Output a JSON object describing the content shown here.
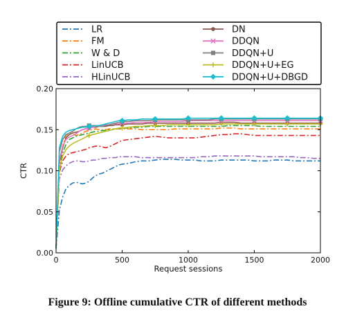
{
  "caption": "Figure 9: Offline cumulative CTR of different methods",
  "chart_data": {
    "type": "line",
    "title": "",
    "xlabel": "Request sessions",
    "ylabel": "CTR",
    "xlim": [
      0,
      2000
    ],
    "ylim": [
      0,
      0.2
    ],
    "xticks": [
      0,
      500,
      1000,
      1500,
      2000
    ],
    "xtick_labels": [
      "0",
      "500",
      "1000",
      "1500",
      "2000"
    ],
    "yticks": [
      0,
      0.05,
      0.1,
      0.15,
      0.2
    ],
    "ytick_labels": [
      "0.00",
      "0.05",
      "0.10",
      "0.15",
      "0.20"
    ],
    "grid": false,
    "legend_position": "top, two columns, above plot",
    "x": [
      0,
      25,
      50,
      75,
      100,
      125,
      150,
      175,
      200,
      225,
      250,
      275,
      300,
      325,
      350,
      375,
      400,
      425,
      450,
      475,
      500,
      550,
      600,
      650,
      700,
      750,
      800,
      850,
      900,
      950,
      1000,
      1050,
      1100,
      1150,
      1200,
      1250,
      1300,
      1350,
      1400,
      1450,
      1500,
      1550,
      1600,
      1650,
      1700,
      1750,
      1800,
      1850,
      1900,
      1950,
      2000
    ],
    "series": [
      {
        "name": "LR",
        "color": "#1f77b4",
        "dash": "8 3 2 3",
        "marker": "none",
        "values": [
          0.005,
          0.052,
          0.068,
          0.078,
          0.082,
          0.085,
          0.086,
          0.085,
          0.084,
          0.085,
          0.087,
          0.091,
          0.094,
          0.096,
          0.097,
          0.099,
          0.101,
          0.103,
          0.105,
          0.107,
          0.108,
          0.109,
          0.111,
          0.112,
          0.112,
          0.113,
          0.114,
          0.114,
          0.114,
          0.113,
          0.113,
          0.113,
          0.112,
          0.112,
          0.112,
          0.113,
          0.113,
          0.113,
          0.113,
          0.113,
          0.112,
          0.112,
          0.112,
          0.113,
          0.113,
          0.113,
          0.112,
          0.112,
          0.112,
          0.112,
          0.112
        ]
      },
      {
        "name": "FM",
        "color": "#ff7f0e",
        "dash": "8 3 2 3",
        "marker": "none",
        "values": [
          0.005,
          0.105,
          0.13,
          0.143,
          0.145,
          0.145,
          0.143,
          0.144,
          0.146,
          0.148,
          0.149,
          0.15,
          0.151,
          0.15,
          0.15,
          0.15,
          0.151,
          0.151,
          0.151,
          0.151,
          0.151,
          0.151,
          0.151,
          0.15,
          0.15,
          0.15,
          0.15,
          0.15,
          0.151,
          0.151,
          0.151,
          0.151,
          0.151,
          0.151,
          0.151,
          0.152,
          0.152,
          0.152,
          0.151,
          0.151,
          0.151,
          0.151,
          0.151,
          0.151,
          0.151,
          0.151,
          0.151,
          0.151,
          0.151,
          0.151,
          0.151
        ]
      },
      {
        "name": "W & D",
        "color": "#2ca02c",
        "dash": "8 3 2 3",
        "marker": "none",
        "values": [
          0.005,
          0.103,
          0.122,
          0.132,
          0.138,
          0.14,
          0.142,
          0.143,
          0.144,
          0.145,
          0.146,
          0.147,
          0.148,
          0.148,
          0.149,
          0.149,
          0.15,
          0.15,
          0.151,
          0.151,
          0.152,
          0.152,
          0.153,
          0.153,
          0.154,
          0.154,
          0.154,
          0.154,
          0.154,
          0.154,
          0.154,
          0.154,
          0.154,
          0.154,
          0.154,
          0.154,
          0.155,
          0.155,
          0.155,
          0.155,
          0.155,
          0.154,
          0.154,
          0.154,
          0.154,
          0.154,
          0.154,
          0.154,
          0.154,
          0.154,
          0.154
        ]
      },
      {
        "name": "LinUCB",
        "color": "#d62728",
        "dash": "8 3 2 3",
        "marker": "none",
        "values": [
          0.005,
          0.098,
          0.112,
          0.118,
          0.121,
          0.122,
          0.123,
          0.124,
          0.125,
          0.126,
          0.128,
          0.129,
          0.13,
          0.13,
          0.129,
          0.128,
          0.129,
          0.131,
          0.133,
          0.135,
          0.137,
          0.138,
          0.139,
          0.14,
          0.141,
          0.142,
          0.141,
          0.14,
          0.14,
          0.14,
          0.14,
          0.14,
          0.141,
          0.142,
          0.143,
          0.144,
          0.144,
          0.145,
          0.145,
          0.144,
          0.143,
          0.143,
          0.143,
          0.143,
          0.143,
          0.143,
          0.143,
          0.143,
          0.143,
          0.143,
          0.143
        ]
      },
      {
        "name": "HLinUCB",
        "color": "#9467bd",
        "dash": "8 3 2 3",
        "marker": "none",
        "values": [
          0.005,
          0.09,
          0.101,
          0.106,
          0.109,
          0.111,
          0.112,
          0.112,
          0.111,
          0.111,
          0.112,
          0.113,
          0.113,
          0.114,
          0.115,
          0.115,
          0.116,
          0.116,
          0.116,
          0.117,
          0.117,
          0.117,
          0.117,
          0.116,
          0.116,
          0.116,
          0.116,
          0.116,
          0.116,
          0.116,
          0.116,
          0.116,
          0.117,
          0.117,
          0.118,
          0.118,
          0.118,
          0.118,
          0.118,
          0.118,
          0.118,
          0.117,
          0.117,
          0.117,
          0.117,
          0.117,
          0.117,
          0.116,
          0.116,
          0.115,
          0.115
        ]
      },
      {
        "name": "DN",
        "color": "#8c564b",
        "dash": "",
        "marker": "circle",
        "values": [
          0.005,
          0.11,
          0.128,
          0.14,
          0.144,
          0.146,
          0.147,
          0.148,
          0.15,
          0.151,
          0.152,
          0.153,
          0.153,
          0.154,
          0.154,
          0.154,
          0.155,
          0.155,
          0.156,
          0.156,
          0.156,
          0.157,
          0.157,
          0.157,
          0.158,
          0.158,
          0.158,
          0.158,
          0.158,
          0.158,
          0.158,
          0.158,
          0.158,
          0.158,
          0.158,
          0.159,
          0.159,
          0.159,
          0.158,
          0.158,
          0.158,
          0.158,
          0.158,
          0.158,
          0.158,
          0.158,
          0.158,
          0.158,
          0.158,
          0.158,
          0.158
        ]
      },
      {
        "name": "DDQN",
        "color": "#e377c2",
        "dash": "",
        "marker": "x",
        "values": [
          0.005,
          0.112,
          0.13,
          0.138,
          0.141,
          0.143,
          0.145,
          0.148,
          0.15,
          0.151,
          0.152,
          0.153,
          0.154,
          0.155,
          0.155,
          0.156,
          0.156,
          0.157,
          0.157,
          0.157,
          0.158,
          0.158,
          0.159,
          0.159,
          0.159,
          0.16,
          0.16,
          0.16,
          0.16,
          0.16,
          0.161,
          0.161,
          0.161,
          0.161,
          0.161,
          0.161,
          0.161,
          0.161,
          0.161,
          0.161,
          0.161,
          0.161,
          0.161,
          0.161,
          0.161,
          0.161,
          0.161,
          0.161,
          0.161,
          0.161,
          0.161
        ]
      },
      {
        "name": "DDQN+U",
        "color": "#7f7f7f",
        "dash": "",
        "marker": "square",
        "values": [
          0.005,
          0.123,
          0.138,
          0.144,
          0.146,
          0.148,
          0.151,
          0.153,
          0.154,
          0.154,
          0.155,
          0.155,
          0.155,
          0.154,
          0.154,
          0.155,
          0.156,
          0.157,
          0.158,
          0.159,
          0.16,
          0.16,
          0.161,
          0.161,
          0.161,
          0.162,
          0.162,
          0.162,
          0.162,
          0.162,
          0.162,
          0.162,
          0.162,
          0.162,
          0.163,
          0.163,
          0.163,
          0.163,
          0.163,
          0.163,
          0.163,
          0.163,
          0.163,
          0.163,
          0.163,
          0.163,
          0.163,
          0.163,
          0.163,
          0.163,
          0.163
        ]
      },
      {
        "name": "DDQN+U+EG",
        "color": "#bcbd22",
        "dash": "",
        "marker": "plus",
        "values": [
          0.005,
          0.1,
          0.118,
          0.126,
          0.13,
          0.133,
          0.135,
          0.137,
          0.139,
          0.141,
          0.143,
          0.144,
          0.145,
          0.146,
          0.147,
          0.148,
          0.149,
          0.15,
          0.151,
          0.152,
          0.152,
          0.153,
          0.154,
          0.154,
          0.155,
          0.155,
          0.155,
          0.156,
          0.156,
          0.156,
          0.156,
          0.156,
          0.156,
          0.156,
          0.156,
          0.157,
          0.157,
          0.157,
          0.157,
          0.157,
          0.157,
          0.157,
          0.157,
          0.157,
          0.157,
          0.157,
          0.157,
          0.157,
          0.157,
          0.157,
          0.157
        ]
      },
      {
        "name": "DDQN+U+DBGD",
        "color": "#17becf",
        "dash": "",
        "marker": "diamond",
        "values": [
          0.005,
          0.128,
          0.142,
          0.147,
          0.149,
          0.15,
          0.151,
          0.152,
          0.153,
          0.153,
          0.154,
          0.154,
          0.155,
          0.155,
          0.156,
          0.157,
          0.158,
          0.159,
          0.16,
          0.161,
          0.161,
          0.162,
          0.162,
          0.163,
          0.163,
          0.163,
          0.163,
          0.163,
          0.163,
          0.163,
          0.164,
          0.164,
          0.164,
          0.164,
          0.164,
          0.164,
          0.164,
          0.164,
          0.164,
          0.164,
          0.164,
          0.164,
          0.164,
          0.164,
          0.164,
          0.164,
          0.164,
          0.164,
          0.164,
          0.164,
          0.164
        ]
      }
    ]
  }
}
